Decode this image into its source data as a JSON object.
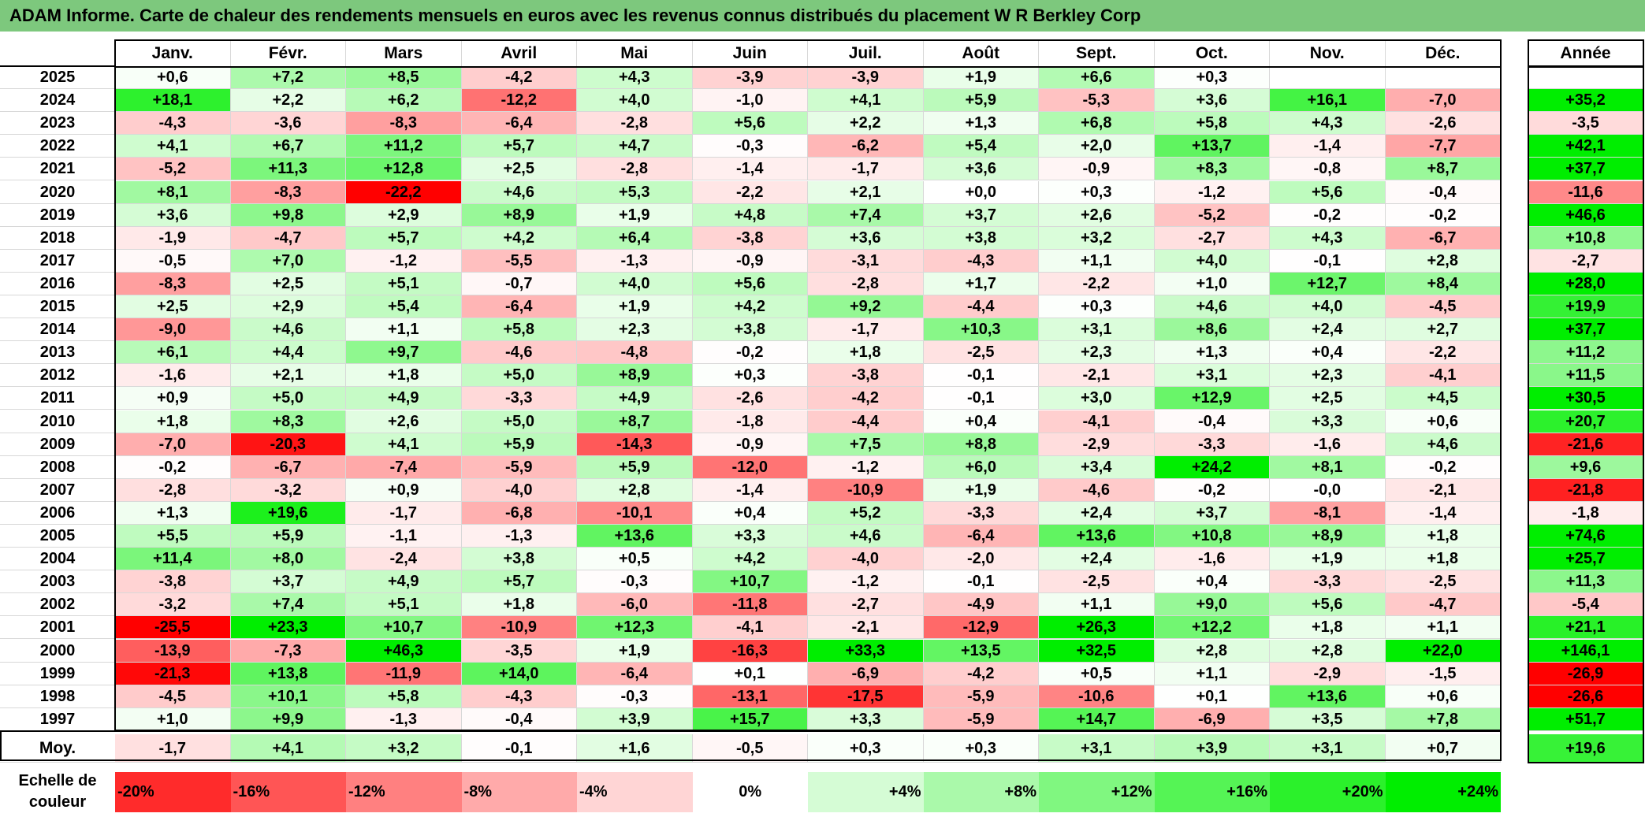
{
  "title": "ADAM Informe. Carte de chaleur des rendements mensuels en euros avec les revenus connus distribués du placement W R Berkley Corp",
  "chart_data": {
    "type": "heatmap",
    "columns": [
      "Janv.",
      "Févr.",
      "Mars",
      "Avril",
      "Mai",
      "Juin",
      "Juil.",
      "Août",
      "Sept.",
      "Oct.",
      "Nov.",
      "Déc."
    ],
    "annual_header": "Année",
    "rows": [
      {
        "year": "2025",
        "values": [
          "+0,6",
          "+7,2",
          "+8,5",
          "-4,2",
          "+4,3",
          "-3,9",
          "-3,9",
          "+1,9",
          "+6,6",
          "+0,3",
          "",
          ""
        ],
        "annual": ""
      },
      {
        "year": "2024",
        "values": [
          "+18,1",
          "+2,2",
          "+6,2",
          "-12,2",
          "+4,0",
          "-1,0",
          "+4,1",
          "+5,9",
          "-5,3",
          "+3,6",
          "+16,1",
          "-7,0"
        ],
        "annual": "+35,2"
      },
      {
        "year": "2023",
        "values": [
          "-4,3",
          "-3,6",
          "-8,3",
          "-6,4",
          "-2,8",
          "+5,6",
          "+2,2",
          "+1,3",
          "+6,8",
          "+5,8",
          "+4,3",
          "-2,6"
        ],
        "annual": "-3,5"
      },
      {
        "year": "2022",
        "values": [
          "+4,1",
          "+6,7",
          "+11,2",
          "+5,7",
          "+4,7",
          "-0,3",
          "-6,2",
          "+5,4",
          "+2,0",
          "+13,7",
          "-1,4",
          "-7,7"
        ],
        "annual": "+42,1"
      },
      {
        "year": "2021",
        "values": [
          "-5,2",
          "+11,3",
          "+12,8",
          "+2,5",
          "-2,8",
          "-1,4",
          "-1,7",
          "+3,6",
          "-0,9",
          "+8,3",
          "-0,8",
          "+8,7"
        ],
        "annual": "+37,7"
      },
      {
        "year": "2020",
        "values": [
          "+8,1",
          "-8,3",
          "-22,2",
          "+4,6",
          "+5,3",
          "-2,2",
          "+2,1",
          "+0,0",
          "+0,3",
          "-1,2",
          "+5,6",
          "-0,4"
        ],
        "annual": "-11,6"
      },
      {
        "year": "2019",
        "values": [
          "+3,6",
          "+9,8",
          "+2,9",
          "+8,9",
          "+1,9",
          "+4,8",
          "+7,4",
          "+3,7",
          "+2,6",
          "-5,2",
          "-0,2",
          "-0,2"
        ],
        "annual": "+46,6"
      },
      {
        "year": "2018",
        "values": [
          "-1,9",
          "-4,7",
          "+5,7",
          "+4,2",
          "+6,4",
          "-3,8",
          "+3,6",
          "+3,8",
          "+3,2",
          "-2,7",
          "+4,3",
          "-6,7"
        ],
        "annual": "+10,8"
      },
      {
        "year": "2017",
        "values": [
          "-0,5",
          "+7,0",
          "-1,2",
          "-5,5",
          "-1,3",
          "-0,9",
          "-3,1",
          "-4,3",
          "+1,1",
          "+4,0",
          "-0,1",
          "+2,8"
        ],
        "annual": "-2,7"
      },
      {
        "year": "2016",
        "values": [
          "-8,3",
          "+2,5",
          "+5,1",
          "-0,7",
          "+4,0",
          "+5,6",
          "-2,8",
          "+1,7",
          "-2,2",
          "+1,0",
          "+12,7",
          "+8,4"
        ],
        "annual": "+28,0"
      },
      {
        "year": "2015",
        "values": [
          "+2,5",
          "+2,9",
          "+5,4",
          "-6,4",
          "+1,9",
          "+4,2",
          "+9,2",
          "-4,4",
          "+0,3",
          "+4,6",
          "+4,0",
          "-4,5"
        ],
        "annual": "+19,9"
      },
      {
        "year": "2014",
        "values": [
          "-9,0",
          "+4,6",
          "+1,1",
          "+5,8",
          "+2,3",
          "+3,8",
          "-1,7",
          "+10,3",
          "+3,1",
          "+8,6",
          "+2,4",
          "+2,7"
        ],
        "annual": "+37,7"
      },
      {
        "year": "2013",
        "values": [
          "+6,1",
          "+4,4",
          "+9,7",
          "-4,6",
          "-4,8",
          "-0,2",
          "+1,8",
          "-2,5",
          "+2,3",
          "+1,3",
          "+0,4",
          "-2,2"
        ],
        "annual": "+11,2"
      },
      {
        "year": "2012",
        "values": [
          "-1,6",
          "+2,1",
          "+1,8",
          "+5,0",
          "+8,9",
          "+0,3",
          "-3,8",
          "-0,1",
          "-2,1",
          "+3,1",
          "+2,3",
          "-4,1"
        ],
        "annual": "+11,5"
      },
      {
        "year": "2011",
        "values": [
          "+0,9",
          "+5,0",
          "+4,9",
          "-3,3",
          "+4,9",
          "-2,6",
          "-4,2",
          "-0,1",
          "+3,0",
          "+12,9",
          "+2,5",
          "+4,5"
        ],
        "annual": "+30,5"
      },
      {
        "year": "2010",
        "values": [
          "+1,8",
          "+8,3",
          "+2,6",
          "+5,0",
          "+8,7",
          "-1,8",
          "-4,4",
          "+0,4",
          "-4,1",
          "-0,4",
          "+3,3",
          "+0,6"
        ],
        "annual": "+20,7"
      },
      {
        "year": "2009",
        "values": [
          "-7,0",
          "-20,3",
          "+4,1",
          "+5,9",
          "-14,3",
          "-0,9",
          "+7,5",
          "+8,8",
          "-2,9",
          "-3,3",
          "-1,6",
          "+4,6"
        ],
        "annual": "-21,6"
      },
      {
        "year": "2008",
        "values": [
          "-0,2",
          "-6,7",
          "-7,4",
          "-5,9",
          "+5,9",
          "-12,0",
          "-1,2",
          "+6,0",
          "+3,4",
          "+24,2",
          "+8,1",
          "-0,2"
        ],
        "annual": "+9,6"
      },
      {
        "year": "2007",
        "values": [
          "-2,8",
          "-3,2",
          "+0,9",
          "-4,0",
          "+2,8",
          "-1,4",
          "-10,9",
          "+1,9",
          "-4,6",
          "-0,2",
          "-0,0",
          "-2,1"
        ],
        "annual": "-21,8"
      },
      {
        "year": "2006",
        "values": [
          "+1,3",
          "+19,6",
          "-1,7",
          "-6,8",
          "-10,1",
          "+0,4",
          "+5,2",
          "-3,3",
          "+2,4",
          "+3,7",
          "-8,1",
          "-1,4"
        ],
        "annual": "-1,8"
      },
      {
        "year": "2005",
        "values": [
          "+5,5",
          "+5,9",
          "-1,1",
          "-1,3",
          "+13,6",
          "+3,3",
          "+4,6",
          "-6,4",
          "+13,6",
          "+10,8",
          "+8,9",
          "+1,8"
        ],
        "annual": "+74,6"
      },
      {
        "year": "2004",
        "values": [
          "+11,4",
          "+8,0",
          "-2,4",
          "+3,8",
          "+0,5",
          "+4,2",
          "-4,0",
          "-2,0",
          "+2,4",
          "-1,6",
          "+1,9",
          "+1,8"
        ],
        "annual": "+25,7"
      },
      {
        "year": "2003",
        "values": [
          "-3,8",
          "+3,7",
          "+4,9",
          "+5,7",
          "-0,3",
          "+10,7",
          "-1,2",
          "-0,1",
          "-2,5",
          "+0,4",
          "-3,3",
          "-2,5"
        ],
        "annual": "+11,3"
      },
      {
        "year": "2002",
        "values": [
          "-3,2",
          "+7,4",
          "+5,1",
          "+1,8",
          "-6,0",
          "-11,8",
          "-2,7",
          "-4,9",
          "+1,1",
          "+9,0",
          "+5,6",
          "-4,7"
        ],
        "annual": "-5,4"
      },
      {
        "year": "2001",
        "values": [
          "-25,5",
          "+23,3",
          "+10,7",
          "-10,9",
          "+12,3",
          "-4,1",
          "-2,1",
          "-12,9",
          "+26,3",
          "+12,2",
          "+1,8",
          "+1,1"
        ],
        "annual": "+21,1"
      },
      {
        "year": "2000",
        "values": [
          "-13,9",
          "-7,3",
          "+46,3",
          "-3,5",
          "+1,9",
          "-16,3",
          "+33,3",
          "+13,5",
          "+32,5",
          "+2,8",
          "+2,8",
          "+22,0"
        ],
        "annual": "+146,1"
      },
      {
        "year": "1999",
        "values": [
          "-21,3",
          "+13,8",
          "-11,9",
          "+14,0",
          "-6,4",
          "+0,1",
          "-6,9",
          "-4,2",
          "+0,5",
          "+1,1",
          "-2,9",
          "-1,5"
        ],
        "annual": "-26,9"
      },
      {
        "year": "1998",
        "values": [
          "-4,5",
          "+10,1",
          "+5,8",
          "-4,3",
          "-0,3",
          "-13,1",
          "-17,5",
          "-5,9",
          "-10,6",
          "+0,1",
          "+13,6",
          "+0,6"
        ],
        "annual": "-26,6"
      },
      {
        "year": "1997",
        "values": [
          "+1,0",
          "+9,9",
          "-1,3",
          "-0,4",
          "+3,9",
          "+15,7",
          "+3,3",
          "-5,9",
          "+14,7",
          "-6,9",
          "+3,5",
          "+7,8"
        ],
        "annual": "+51,7"
      }
    ],
    "average": {
      "label": "Moy.",
      "values": [
        "-1,7",
        "+4,1",
        "+3,2",
        "-0,1",
        "+1,6",
        "-0,5",
        "+0,3",
        "+0,3",
        "+3,1",
        "+3,9",
        "+3,1",
        "+0,7"
      ],
      "annual": "+19,6"
    },
    "scale": {
      "label": "Echelle de couleur",
      "stops": [
        "-20%",
        "-16%",
        "-12%",
        "-8%",
        "-4%",
        "0%",
        "+4%",
        "+8%",
        "+12%",
        "+16%",
        "+20%",
        "+24%"
      ]
    },
    "colors": {
      "negative_max": "#ff0000",
      "neutral": "#ffffff",
      "positive_max": "#00ee00",
      "title_bar": "#7dc87d"
    }
  }
}
